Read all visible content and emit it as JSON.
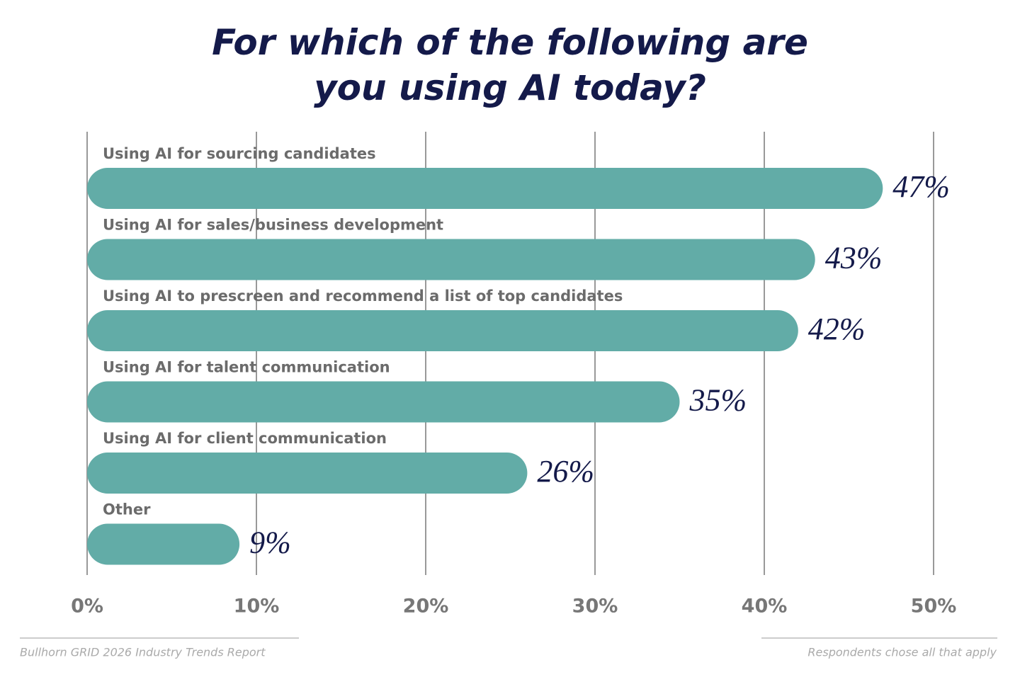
{
  "chart_data": {
    "type": "barh",
    "title": "For which of the following are you using AI today?",
    "categories": [
      "Using AI for sourcing candidates",
      "Using AI for sales/business development",
      "Using AI to prescreen and recommend a list of top candidates",
      "Using AI for talent communication",
      "Using AI for client communication",
      "Other"
    ],
    "values": [
      47,
      43,
      42,
      35,
      26,
      9
    ],
    "value_labels": [
      "47%",
      "43%",
      "42%",
      "35%",
      "26%",
      "9%"
    ],
    "color": "#62aca7",
    "xlim": [
      0,
      50
    ],
    "xticks": [
      {
        "value": 0,
        "label": "0%"
      },
      {
        "value": 10,
        "label": "10%"
      },
      {
        "value": 20,
        "label": "20%"
      },
      {
        "value": 30,
        "label": "30%"
      },
      {
        "value": 40,
        "label": "40%"
      },
      {
        "value": 50,
        "label": "50%"
      }
    ],
    "grid": true,
    "source": "Bullhorn GRID 2026 Industry Trends Report",
    "note": "Respondents chose all that apply"
  }
}
